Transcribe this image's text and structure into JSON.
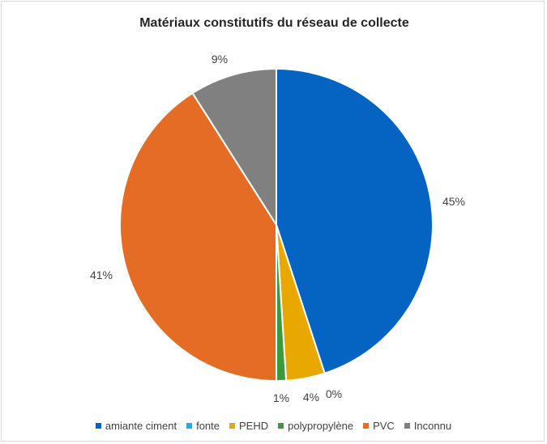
{
  "chart_data": {
    "type": "pie",
    "title": "Matériaux constitutifs du réseau de collecte",
    "categories": [
      "amiante ciment",
      "fonte",
      "PEHD",
      "polypropylène",
      "PVC",
      "Inconnu"
    ],
    "values": [
      45,
      0,
      4,
      1,
      41,
      9
    ],
    "data_labels": [
      "45%",
      "0%",
      "4%",
      "1%",
      "41%",
      "9%"
    ],
    "colors": [
      "#0563c1",
      "#2ea8e0",
      "#e8a800",
      "#3c9a3c",
      "#e46c24",
      "#808080"
    ],
    "start_angle_deg": 0,
    "direction": "clockwise",
    "legend_position": "bottom"
  }
}
